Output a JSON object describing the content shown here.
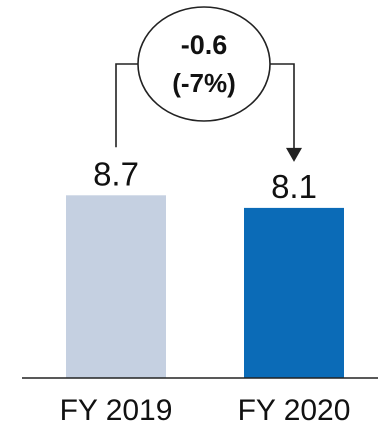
{
  "chart_data": {
    "type": "bar",
    "categories": [
      "FY 2019",
      "FY 2020"
    ],
    "values": [
      8.7,
      8.1
    ],
    "value_labels": [
      "8.7",
      "8.1"
    ],
    "colors": [
      "#c5d0e1",
      "#0b6bb7"
    ],
    "ylim": [
      0,
      11
    ],
    "grid": false,
    "legend": "none",
    "annotation": {
      "delta": "-0.6",
      "percent": "(-7%)"
    }
  }
}
